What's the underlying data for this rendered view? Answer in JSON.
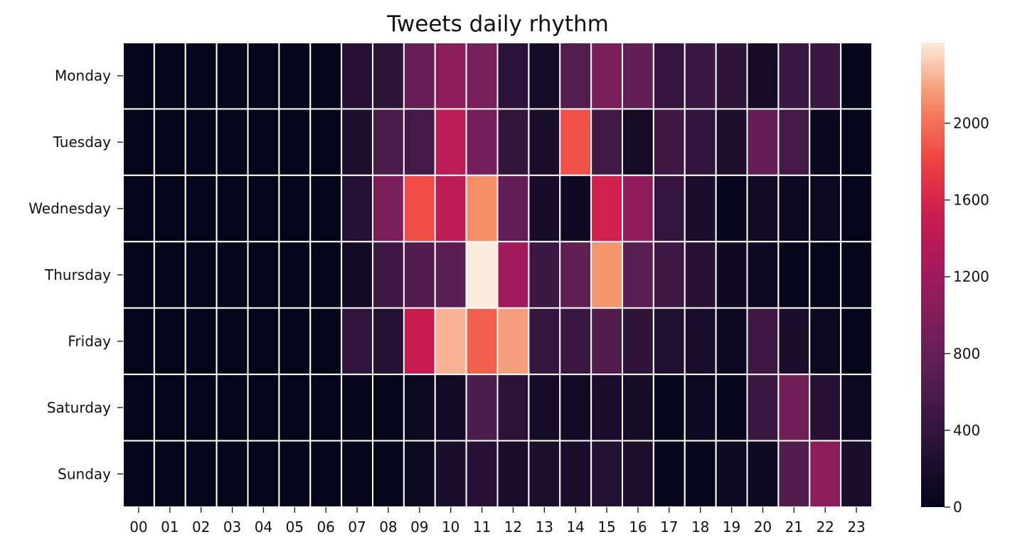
{
  "chart_data": {
    "type": "heatmap",
    "title": "Tweets daily rhythm",
    "rows": [
      "Monday",
      "Tuesday",
      "Wednesday",
      "Thursday",
      "Friday",
      "Saturday",
      "Sunday"
    ],
    "columns": [
      "00",
      "01",
      "02",
      "03",
      "04",
      "05",
      "06",
      "07",
      "08",
      "09",
      "10",
      "11",
      "12",
      "13",
      "14",
      "15",
      "16",
      "17",
      "18",
      "19",
      "20",
      "21",
      "22",
      "23"
    ],
    "values": [
      [
        10,
        10,
        10,
        10,
        10,
        10,
        10,
        300,
        330,
        820,
        1060,
        940,
        350,
        160,
        660,
        950,
        760,
        430,
        450,
        360,
        150,
        470,
        460,
        20
      ],
      [
        10,
        10,
        10,
        10,
        10,
        10,
        10,
        230,
        590,
        530,
        1420,
        920,
        400,
        200,
        1870,
        510,
        150,
        500,
        380,
        230,
        790,
        530,
        60,
        10
      ],
      [
        10,
        10,
        10,
        10,
        10,
        10,
        10,
        290,
        960,
        1850,
        1420,
        2130,
        770,
        170,
        110,
        1560,
        1090,
        430,
        200,
        50,
        140,
        80,
        80,
        10
      ],
      [
        10,
        10,
        10,
        10,
        10,
        10,
        10,
        140,
        500,
        650,
        720,
        2420,
        1220,
        450,
        760,
        2150,
        700,
        500,
        310,
        120,
        80,
        50,
        20,
        10
      ],
      [
        10,
        10,
        10,
        10,
        10,
        10,
        10,
        380,
        290,
        1520,
        2240,
        1930,
        2180,
        420,
        450,
        640,
        360,
        250,
        190,
        90,
        500,
        200,
        70,
        10
      ],
      [
        10,
        10,
        10,
        10,
        10,
        10,
        10,
        30,
        20,
        70,
        130,
        600,
        330,
        160,
        140,
        190,
        160,
        40,
        80,
        50,
        460,
        890,
        300,
        80
      ],
      [
        10,
        10,
        10,
        10,
        10,
        10,
        10,
        30,
        20,
        70,
        200,
        310,
        200,
        210,
        190,
        270,
        220,
        40,
        20,
        80,
        90,
        640,
        1060,
        190
      ]
    ],
    "colorbar": {
      "min": 0,
      "max": 2420,
      "ticks": [
        0,
        400,
        800,
        1200,
        1600,
        2000
      ]
    }
  }
}
